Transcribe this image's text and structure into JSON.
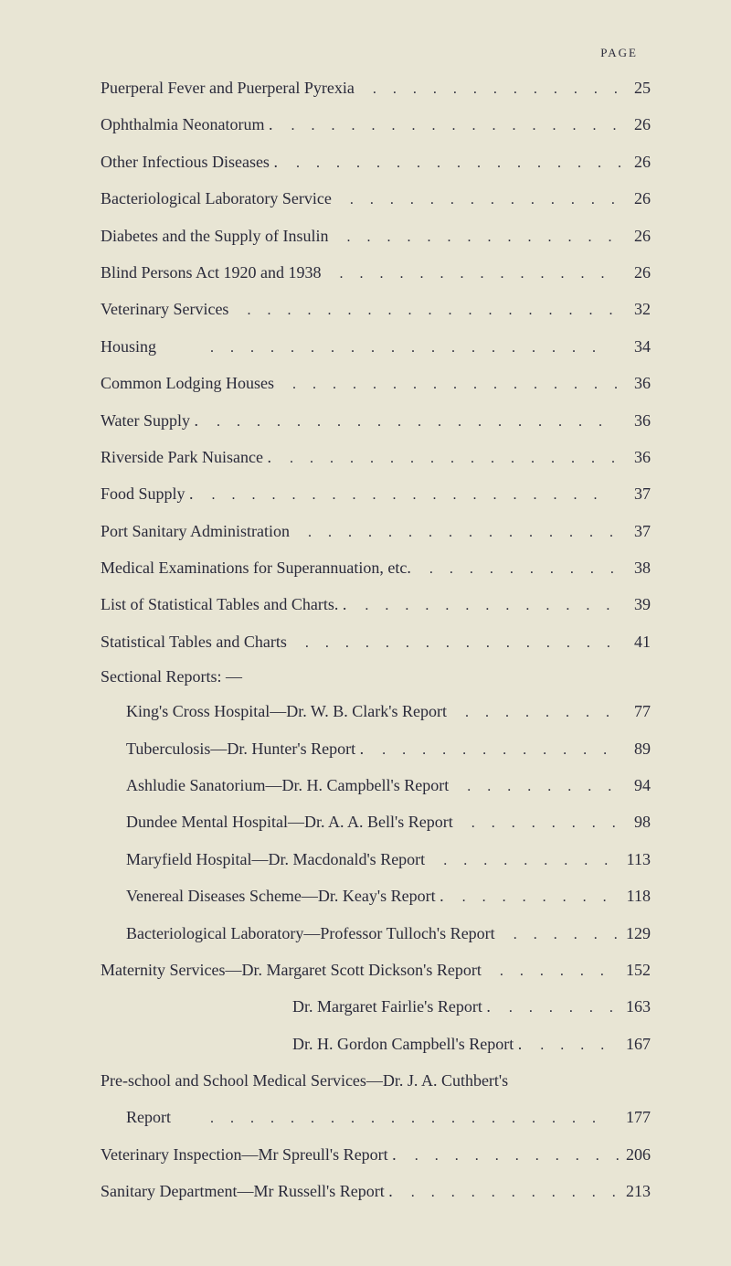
{
  "header": "PAGE",
  "entries": [
    {
      "label": "Puerperal Fever and Puerperal Pyrexia",
      "page": "25",
      "indent": ""
    },
    {
      "label": "Ophthalmia Neonatorum .",
      "page": "26",
      "indent": ""
    },
    {
      "label": "Other Infectious Diseases .",
      "page": "26",
      "indent": ""
    },
    {
      "label": "Bacteriological Laboratory Service",
      "page": "26",
      "indent": ""
    },
    {
      "label": "Diabetes and the Supply of Insulin",
      "page": "26",
      "indent": ""
    },
    {
      "label": "Blind Persons Act 1920 and 1938",
      "page": "26",
      "indent": ""
    },
    {
      "label": "Veterinary Services",
      "page": "32",
      "indent": ""
    },
    {
      "label": "Housing",
      "page": "34",
      "indent": ""
    },
    {
      "label": "Common Lodging Houses",
      "page": "36",
      "indent": ""
    },
    {
      "label": "Water Supply .",
      "page": "36",
      "indent": ""
    },
    {
      "label": "Riverside Park Nuisance .",
      "page": "36",
      "indent": ""
    },
    {
      "label": "Food Supply .",
      "page": "37",
      "indent": ""
    },
    {
      "label": "Port Sanitary Administration",
      "page": "37",
      "indent": ""
    },
    {
      "label": "Medical Examinations for Superannuation, etc.",
      "page": "38",
      "indent": ""
    },
    {
      "label": "List of Statistical Tables and Charts.  .",
      "page": "39",
      "indent": ""
    },
    {
      "label": "Statistical Tables and Charts",
      "page": "41",
      "indent": ""
    }
  ],
  "sectionalHeading": "Sectional Reports: —",
  "sectionalEntries": [
    {
      "label": "King's Cross Hospital—Dr. W. B. Clark's Report",
      "page": "77",
      "indent": "indent"
    },
    {
      "label": "Tuberculosis—Dr. Hunter's Report .",
      "page": "89",
      "indent": "indent"
    },
    {
      "label": "Ashludie Sanatorium—Dr. H. Campbell's Report",
      "page": "94",
      "indent": "indent"
    },
    {
      "label": "Dundee Mental Hospital—Dr. A. A. Bell's Report",
      "page": "98",
      "indent": "indent"
    },
    {
      "label": "Maryfield Hospital—Dr. Macdonald's Report",
      "page": "113",
      "indent": "indent"
    },
    {
      "label": "Venereal Diseases Scheme—Dr. Keay's Report  .",
      "page": "118",
      "indent": "indent"
    },
    {
      "label": "Bacteriological Laboratory—Professor Tulloch's Report",
      "page": "129",
      "indent": "indent"
    }
  ],
  "maternityEntries": [
    {
      "label": "Maternity Services—Dr. Margaret Scott Dickson's Report",
      "page": "152",
      "indent": ""
    },
    {
      "label": "Dr. Margaret Fairlie's Report .",
      "page": "163",
      "indent": "sub-indent"
    },
    {
      "label": "Dr. H. Gordon Campbell's Report  .",
      "page": "167",
      "indent": "sub-indent"
    }
  ],
  "finalEntries": [
    {
      "label": "Pre-school and School Medical Services—Dr. J. A. Cuthbert's",
      "page": "",
      "indent": "",
      "nodots": true
    },
    {
      "label": "Report",
      "page": "177",
      "indent": "report-indent"
    },
    {
      "label": "Veterinary Inspection—Mr Spreull's Report .",
      "page": "206",
      "indent": ""
    },
    {
      "label": "Sanitary Department—Mr Russell's Report  .",
      "page": "213",
      "indent": ""
    }
  ],
  "styling": {
    "backgroundColor": "#e8e5d4",
    "textColor": "#2a2a3a",
    "fontSize": 18,
    "headerFontSize": 13,
    "lineSpacing": 15
  }
}
